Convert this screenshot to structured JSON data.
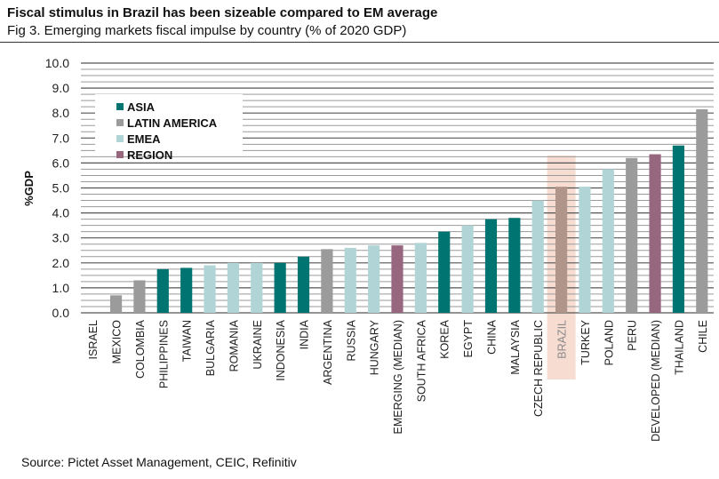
{
  "title": "Fiscal stimulus in Brazil has been sizeable compared to EM average",
  "subtitle": "Fig 3. Emerging markets fiscal impulse by country (% of 2020 GDP)",
  "source": "Source: Pictet Asset Management, CEIC, Refinitiv",
  "chart_data": {
    "type": "bar",
    "ylabel": "%GDP",
    "ylim": [
      0,
      10
    ],
    "yticks": [
      "0.0",
      "1.0",
      "2.0",
      "3.0",
      "4.0",
      "5.0",
      "6.0",
      "7.0",
      "8.0",
      "9.0",
      "10.0"
    ],
    "grid": true,
    "legend_position": "top-left",
    "legend": [
      {
        "name": "ASIA",
        "color": "#007470"
      },
      {
        "name": "LATIN AMERICA",
        "color": "#9b9b9b"
      },
      {
        "name": "EMEA",
        "color": "#b1d5d6"
      },
      {
        "name": "REGION",
        "color": "#96677f"
      }
    ],
    "highlight": {
      "category": "BRAZIL",
      "color": "#f7dcd1",
      "bar_color": "#b0958a"
    },
    "categories": [
      "ISRAEL",
      "MEXICO",
      "COLOMBIA",
      "PHILIPPINES",
      "TAIWAN",
      "BULGARIA",
      "ROMANIA",
      "UKRAINE",
      "INDONESIA",
      "INDIA",
      "ARGENTINA",
      "RUSSIA",
      "HUNGARY",
      "EMERGING (MEDIAN)",
      "SOUTH AFRICA",
      "KOREA",
      "EGYPT",
      "CHINA",
      "MALAYSIA",
      "CZECH REPUBLIC",
      "BRAZIL",
      "TURKEY",
      "POLAND",
      "PERU",
      "DEVELOPED (MEDIAN)",
      "THAILAND",
      "CHILE"
    ],
    "groups": [
      "EMEA",
      "LATIN AMERICA",
      "LATIN AMERICA",
      "ASIA",
      "ASIA",
      "EMEA",
      "EMEA",
      "EMEA",
      "ASIA",
      "ASIA",
      "LATIN AMERICA",
      "EMEA",
      "EMEA",
      "REGION",
      "EMEA",
      "ASIA",
      "EMEA",
      "ASIA",
      "ASIA",
      "EMEA",
      "LATIN AMERICA",
      "EMEA",
      "EMEA",
      "LATIN AMERICA",
      "REGION",
      "ASIA",
      "LATIN AMERICA"
    ],
    "values": [
      0.0,
      0.7,
      1.3,
      1.75,
      1.8,
      1.9,
      2.0,
      2.0,
      2.0,
      2.25,
      2.55,
      2.6,
      2.7,
      2.7,
      2.8,
      3.25,
      3.5,
      3.75,
      3.8,
      4.5,
      5.05,
      5.05,
      5.75,
      6.2,
      6.35,
      6.7,
      8.15
    ]
  }
}
